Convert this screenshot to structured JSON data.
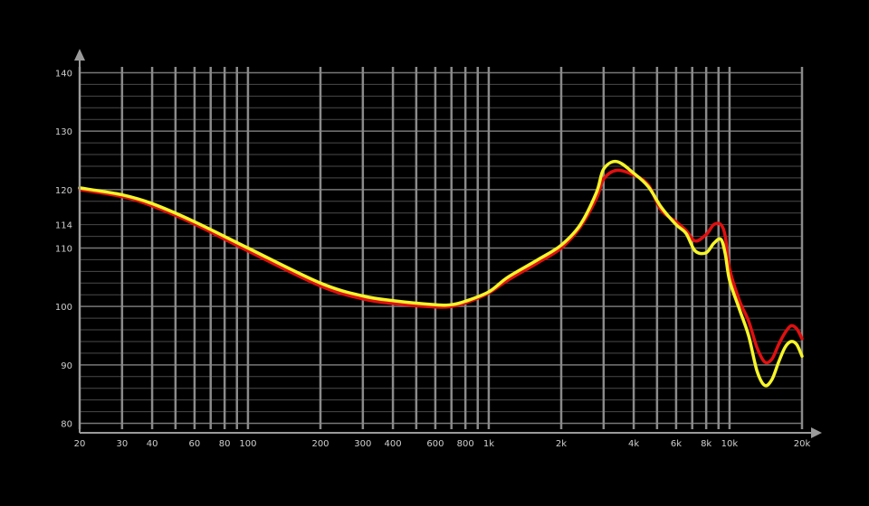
{
  "chart_data": {
    "type": "line",
    "title": "",
    "xlabel": "",
    "ylabel": "",
    "x_scale": "log",
    "xlim": [
      20,
      20000
    ],
    "ylim": [
      79,
      141
    ],
    "grid": true,
    "legend": "none",
    "background_color": "#000000",
    "grid_color": "#8a8a8a",
    "axis_color": "#9a9a9a",
    "x_ticks": [
      {
        "value": 20,
        "label": "20"
      },
      {
        "value": 30,
        "label": "30"
      },
      {
        "value": 40,
        "label": "40"
      },
      {
        "value": 60,
        "label": "60"
      },
      {
        "value": 80,
        "label": "80"
      },
      {
        "value": 100,
        "label": "100"
      },
      {
        "value": 200,
        "label": "200"
      },
      {
        "value": 300,
        "label": "300"
      },
      {
        "value": 400,
        "label": "400"
      },
      {
        "value": 600,
        "label": "600"
      },
      {
        "value": 800,
        "label": "800"
      },
      {
        "value": 1000,
        "label": "1k"
      },
      {
        "value": 2000,
        "label": "2k"
      },
      {
        "value": 4000,
        "label": "4k"
      },
      {
        "value": 6000,
        "label": "6k"
      },
      {
        "value": 8000,
        "label": "8k"
      },
      {
        "value": 10000,
        "label": "10k"
      },
      {
        "value": 20000,
        "label": "20k"
      }
    ],
    "x_gridlines": [
      20,
      30,
      40,
      50,
      60,
      70,
      80,
      90,
      100,
      200,
      300,
      400,
      500,
      600,
      700,
      800,
      900,
      1000,
      2000,
      3000,
      4000,
      5000,
      6000,
      7000,
      8000,
      9000,
      10000,
      20000
    ],
    "y_ticks": [
      {
        "value": 80,
        "label": "80"
      },
      {
        "value": 90,
        "label": "90"
      },
      {
        "value": 100,
        "label": "100"
      },
      {
        "value": 110,
        "label": "110"
      },
      {
        "value": 114,
        "label": "114"
      },
      {
        "value": 120,
        "label": "120"
      },
      {
        "value": 130,
        "label": "130"
      },
      {
        "value": 140,
        "label": "140"
      }
    ],
    "y_gridlines": [
      80,
      82,
      84,
      86,
      88,
      90,
      92,
      94,
      96,
      98,
      100,
      102,
      104,
      106,
      108,
      110,
      112,
      114,
      116,
      118,
      120,
      122,
      124,
      126,
      128,
      130,
      132,
      134,
      136,
      138,
      140
    ],
    "series": [
      {
        "color": "#e01010",
        "x": [
          20,
          30,
          40,
          60,
          100,
          200,
          300,
          400,
          600,
          700,
          800,
          1000,
          1200,
          1600,
          2000,
          2400,
          2800,
          3000,
          3400,
          4000,
          4600,
          5200,
          6000,
          6600,
          7200,
          8000,
          8600,
          9200,
          9600,
          10000,
          11000,
          12000,
          13000,
          14000,
          15000,
          16000,
          17000,
          18000,
          19000,
          20000
        ],
        "y": [
          120,
          118.8,
          117.2,
          114.1,
          109.5,
          103.5,
          101.3,
          100.5,
          99.9,
          100,
          100.6,
          102.3,
          104.5,
          107.5,
          110,
          113.6,
          118.5,
          121.8,
          123.3,
          122.5,
          120.8,
          116.5,
          114.5,
          113,
          111.2,
          112.3,
          114,
          114,
          112,
          106.5,
          101,
          97.5,
          93,
          90.5,
          91,
          93.5,
          95.5,
          96.7,
          96.2,
          94.5
        ]
      },
      {
        "color": "#f5f52a",
        "x": [
          20,
          30,
          40,
          60,
          100,
          200,
          300,
          400,
          600,
          700,
          800,
          1000,
          1200,
          1600,
          2000,
          2400,
          2800,
          3000,
          3400,
          4000,
          4600,
          5200,
          6000,
          6600,
          7200,
          8000,
          8600,
          9200,
          9600,
          10000,
          11000,
          12000,
          13000,
          14000,
          15000,
          16000,
          17000,
          18000,
          19000,
          20000
        ],
        "y": [
          120.3,
          119.1,
          117.6,
          114.5,
          110,
          104,
          101.8,
          101,
          100.3,
          100.3,
          100.9,
          102.5,
          105,
          108,
          110.5,
          114,
          119.5,
          123.5,
          124.8,
          122.8,
          120.5,
          117,
          114,
          112.5,
          109.5,
          109.2,
          110.8,
          111.5,
          109,
          104.5,
          99.5,
          95,
          89,
          86.5,
          87.5,
          90.5,
          93,
          94,
          93.5,
          91.5
        ]
      }
    ]
  }
}
